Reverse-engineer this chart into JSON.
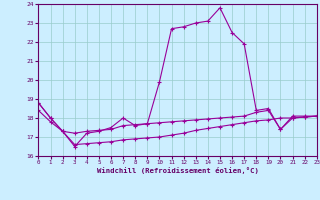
{
  "xlabel": "Windchill (Refroidissement éolien,°C)",
  "xlim": [
    0,
    23
  ],
  "ylim": [
    16,
    24
  ],
  "yticks": [
    16,
    17,
    18,
    19,
    20,
    21,
    22,
    23,
    24
  ],
  "xticks": [
    0,
    1,
    2,
    3,
    4,
    5,
    6,
    7,
    8,
    9,
    10,
    11,
    12,
    13,
    14,
    15,
    16,
    17,
    18,
    19,
    20,
    21,
    22,
    23
  ],
  "background_color": "#cceeff",
  "grid_color": "#99cccc",
  "line_color": "#990099",
  "top_y": [
    18.8,
    18.0,
    17.3,
    16.5,
    17.2,
    17.3,
    17.5,
    18.0,
    17.6,
    17.7,
    19.9,
    22.7,
    22.8,
    23.0,
    23.1,
    23.8,
    22.5,
    21.9,
    18.4,
    18.5,
    17.4,
    18.1,
    18.1,
    18.1
  ],
  "mid_y": [
    18.8,
    18.0,
    17.3,
    17.2,
    17.3,
    17.35,
    17.4,
    17.6,
    17.65,
    17.7,
    17.75,
    17.8,
    17.85,
    17.9,
    17.95,
    18.0,
    18.05,
    18.1,
    18.3,
    18.4,
    17.4,
    18.0,
    18.05,
    18.1
  ],
  "bot_y": [
    18.4,
    17.8,
    17.3,
    16.6,
    16.65,
    16.7,
    16.75,
    16.85,
    16.9,
    16.95,
    17.0,
    17.1,
    17.2,
    17.35,
    17.45,
    17.55,
    17.65,
    17.75,
    17.85,
    17.9,
    18.0,
    18.0,
    18.05,
    18.1
  ]
}
